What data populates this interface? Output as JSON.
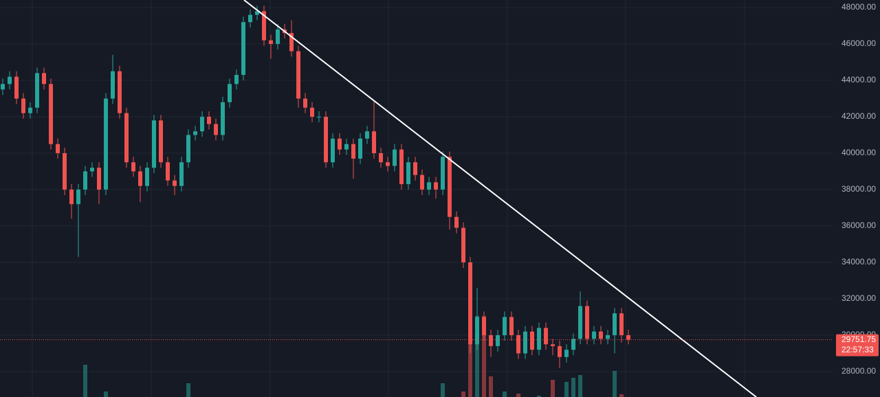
{
  "chart_data": {
    "type": "candlestick",
    "open": [
      43500,
      43800,
      44200,
      43000,
      42200,
      42500,
      44400,
      43800,
      40500,
      40000,
      38000,
      37200,
      38000,
      39000,
      39200,
      38000,
      43000,
      44500,
      42200,
      39500,
      39000,
      38200,
      39200,
      41800,
      39500,
      38500,
      38200,
      39500,
      41000,
      41200,
      42000,
      41600,
      41000,
      42800,
      43800,
      44300,
      47200,
      47600,
      47800,
      46200,
      46000,
      46800,
      46600,
      45600,
      43000,
      42500,
      42000,
      42000,
      39500,
      40800,
      40200,
      40500,
      39700,
      40800,
      41200,
      40000,
      39500,
      39300,
      40200,
      38300,
      39500,
      38800,
      38000,
      38400,
      38000,
      39800,
      36500,
      35900,
      34000,
      29500,
      31000,
      30000,
      29400,
      30000,
      31000,
      30000,
      29000,
      30200,
      29200,
      30400,
      29500,
      29400,
      28800,
      29200,
      29800,
      31600,
      29800,
      30200,
      29800,
      30000,
      31200,
      30000
    ],
    "high": [
      44100,
      44500,
      44500,
      43300,
      42800,
      44700,
      44700,
      44100,
      40800,
      40300,
      38300,
      38300,
      39300,
      39500,
      39500,
      43300,
      45400,
      44800,
      42500,
      39800,
      39300,
      39500,
      42100,
      42100,
      39800,
      38800,
      39800,
      41300,
      41500,
      42300,
      42300,
      41900,
      43100,
      44100,
      44600,
      47500,
      47900,
      48100,
      48100,
      46500,
      47100,
      47100,
      47300,
      45900,
      43300,
      42800,
      42300,
      42300,
      41100,
      41100,
      40800,
      40800,
      41100,
      41500,
      42900,
      40300,
      39800,
      40500,
      40500,
      39800,
      39800,
      39100,
      38700,
      38700,
      40100,
      40100,
      36800,
      36200,
      34300,
      32600,
      31300,
      30300,
      30300,
      31300,
      31300,
      30300,
      30500,
      30500,
      30700,
      30700,
      29800,
      29700,
      29500,
      30100,
      32400,
      31900,
      30500,
      30500,
      30300,
      31500,
      31500,
      30300
    ],
    "low": [
      43200,
      43500,
      42700,
      41900,
      41900,
      42200,
      43500,
      40200,
      39700,
      37700,
      36400,
      34300,
      37700,
      38700,
      37200,
      37700,
      42700,
      41900,
      39200,
      38700,
      37300,
      37900,
      38900,
      39200,
      38200,
      37700,
      37900,
      39200,
      40700,
      40900,
      41300,
      40700,
      40700,
      42500,
      43500,
      44000,
      46900,
      47300,
      45900,
      45200,
      45700,
      46300,
      45300,
      42500,
      42200,
      41700,
      41700,
      39200,
      39200,
      39900,
      39900,
      38600,
      39400,
      40500,
      39700,
      39200,
      39000,
      39000,
      38000,
      38000,
      38500,
      37700,
      37700,
      37500,
      37700,
      35800,
      35600,
      33700,
      29000,
      29200,
      29700,
      28800,
      29100,
      29700,
      29700,
      28700,
      28700,
      28900,
      28900,
      29200,
      28900,
      28200,
      28500,
      28900,
      29500,
      29500,
      29500,
      29500,
      29500,
      29000,
      29600,
      29500
    ],
    "close": [
      43800,
      44200,
      43000,
      42200,
      42500,
      44400,
      43800,
      40500,
      40000,
      38000,
      37200,
      38000,
      39000,
      39200,
      38000,
      43000,
      44500,
      42200,
      39500,
      39000,
      38200,
      39200,
      41800,
      39500,
      38500,
      38200,
      39500,
      41000,
      41200,
      42000,
      41600,
      41000,
      42800,
      43800,
      44300,
      47200,
      47600,
      47800,
      46200,
      46000,
      46800,
      46600,
      45600,
      43000,
      42500,
      42000,
      42000,
      39500,
      40800,
      40200,
      40500,
      39700,
      40800,
      41200,
      40000,
      39500,
      39300,
      40200,
      38300,
      39500,
      38800,
      38000,
      38400,
      38000,
      39800,
      36500,
      35900,
      34000,
      29500,
      31000,
      30000,
      29400,
      30000,
      31000,
      30000,
      29000,
      30200,
      29200,
      30400,
      29500,
      29400,
      28800,
      29200,
      29800,
      31600,
      29800,
      30200,
      29800,
      30000,
      31200,
      30000,
      29751.75
    ],
    "volume": [
      0,
      0,
      0,
      0,
      0,
      0,
      0,
      0,
      0,
      0,
      0,
      0,
      47,
      0,
      0,
      8,
      0,
      0,
      0,
      0,
      0,
      0,
      0,
      0,
      0,
      0,
      0,
      20,
      0,
      0,
      0,
      0,
      0,
      0,
      0,
      0,
      0,
      0,
      0,
      0,
      0,
      0,
      0,
      0,
      0,
      0,
      0,
      0,
      0,
      0,
      0,
      0,
      0,
      0,
      0,
      0,
      0,
      0,
      0,
      0,
      0,
      0,
      0,
      0,
      20,
      0,
      0,
      8,
      110,
      118,
      118,
      30,
      0,
      8,
      0,
      5,
      0,
      0,
      2,
      0,
      25,
      0,
      22,
      28,
      32,
      0,
      0,
      0,
      0,
      38,
      4,
      0
    ],
    "up_color": "#26a69a",
    "down_color": "#ef5350",
    "ylim": [
      26604,
      48415
    ],
    "yticks": [
      {
        "value": 28000,
        "label": "28000.00"
      },
      {
        "value": 30000,
        "label": "30000.00"
      },
      {
        "value": 32000,
        "label": "32000.00"
      },
      {
        "value": 34000,
        "label": "34000.00"
      },
      {
        "value": 36000,
        "label": "36000.00"
      },
      {
        "value": 38000,
        "label": "38000.00"
      },
      {
        "value": 40000,
        "label": "40000.00"
      },
      {
        "value": 42000,
        "label": "42000.00"
      },
      {
        "value": 44000,
        "label": "44000.00"
      },
      {
        "value": 46000,
        "label": "46000.00"
      },
      {
        "value": 48000,
        "label": "48000.00"
      }
    ],
    "grid": true,
    "countdown": "22:57:33"
  }
}
